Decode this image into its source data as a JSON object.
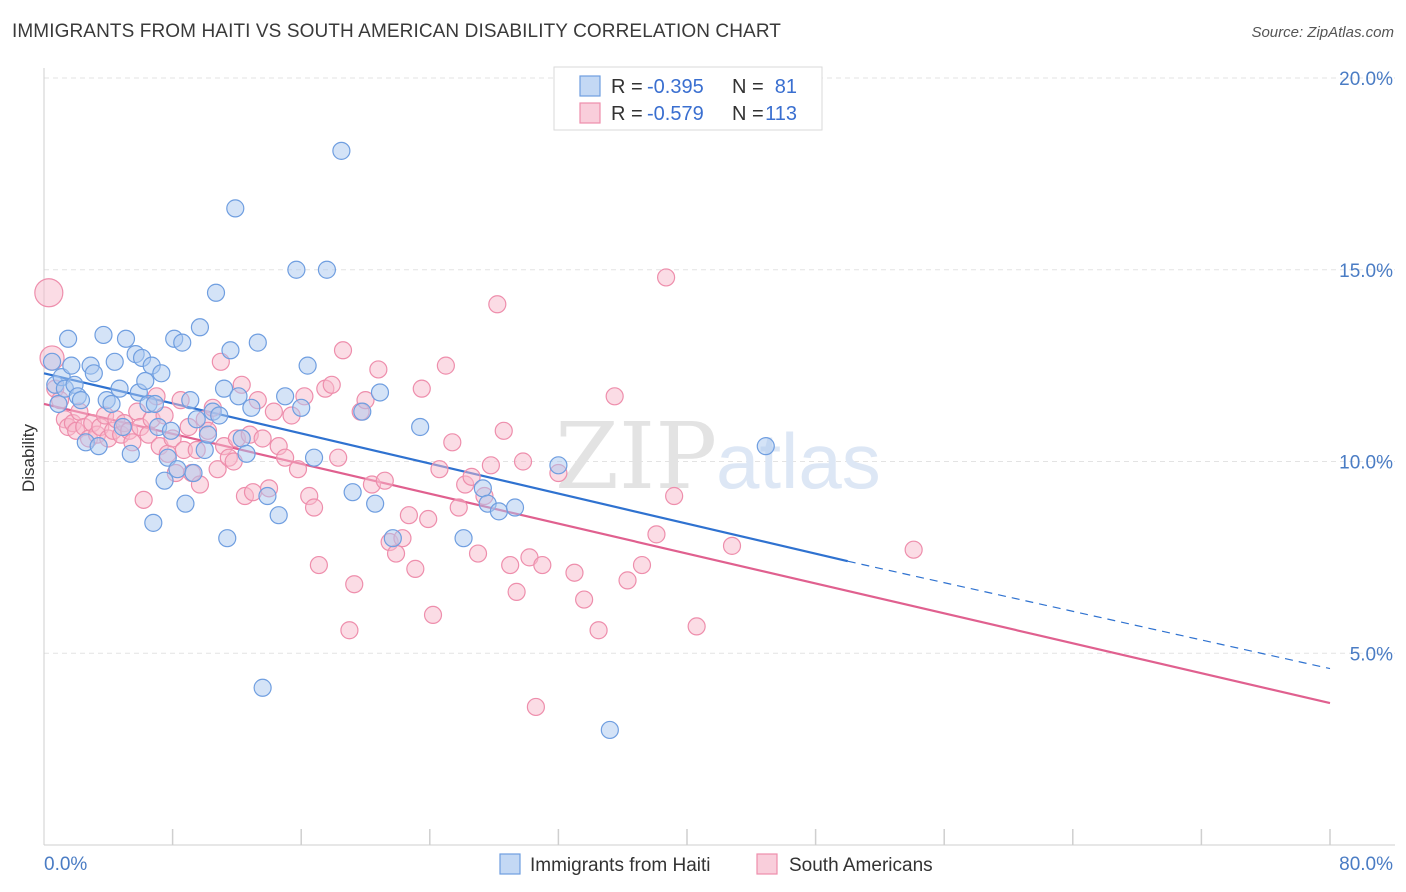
{
  "title": "IMMIGRANTS FROM HAITI VS SOUTH AMERICAN DISABILITY CORRELATION CHART",
  "source": "Source: ZipAtlas.com",
  "colors": {
    "haiti_fill": "#a9c7f0",
    "haiti_stroke": "#6f9ee0",
    "haiti_line": "#2f72d0",
    "sa_fill": "#f7b9cc",
    "sa_stroke": "#ee8eac",
    "sa_line": "#e0608f",
    "tick": "#4a7cc4",
    "grid": "#e3e3e3"
  },
  "legend": {
    "rows": [
      {
        "r_label": "R =",
        "r_value": "-0.395",
        "n_label": "N =",
        "n_value": "81"
      },
      {
        "r_label": "R =",
        "r_value": "-0.579",
        "n_label": "N =",
        "n_value": "113"
      }
    ]
  },
  "watermark": {
    "zip": "ZIP",
    "atlas": "atlas"
  },
  "chart_data": {
    "type": "scatter",
    "title": "IMMIGRANTS FROM HAITI VS SOUTH AMERICAN DISABILITY CORRELATION CHART",
    "xlabel": "",
    "ylabel": "Disability",
    "xlim": [
      0,
      80
    ],
    "ylim": [
      0,
      20
    ],
    "x_tick_labels": [
      "0.0%",
      "80.0%"
    ],
    "y_ticks": [
      5,
      10,
      15,
      20
    ],
    "y_tick_labels": [
      "5.0%",
      "10.0%",
      "15.0%",
      "20.0%"
    ],
    "grid": true,
    "legend_position": "top-center",
    "series": [
      {
        "name": "Immigrants from Haiti",
        "R": -0.395,
        "N": 81,
        "trend": {
          "x0": 0,
          "y0": 12.3,
          "x1": 50,
          "y1": 7.4,
          "dashed_to_x": 80,
          "dashed_to_y": 4.6
        },
        "points": [
          [
            0.5,
            12.6
          ],
          [
            0.7,
            12.0
          ],
          [
            0.9,
            11.5
          ],
          [
            1.1,
            12.2
          ],
          [
            1.3,
            11.9
          ],
          [
            1.5,
            13.2
          ],
          [
            1.7,
            12.5
          ],
          [
            1.9,
            12.0
          ],
          [
            2.1,
            11.7
          ],
          [
            2.3,
            11.6
          ],
          [
            2.6,
            10.5
          ],
          [
            2.9,
            12.5
          ],
          [
            3.1,
            12.3
          ],
          [
            3.4,
            10.4
          ],
          [
            3.7,
            13.3
          ],
          [
            3.9,
            11.6
          ],
          [
            4.2,
            11.5
          ],
          [
            4.4,
            12.6
          ],
          [
            4.7,
            11.9
          ],
          [
            4.9,
            10.9
          ],
          [
            5.1,
            13.2
          ],
          [
            5.4,
            10.2
          ],
          [
            5.7,
            12.8
          ],
          [
            5.9,
            11.8
          ],
          [
            6.1,
            12.7
          ],
          [
            6.3,
            12.1
          ],
          [
            6.5,
            11.5
          ],
          [
            6.7,
            12.5
          ],
          [
            6.9,
            11.5
          ],
          [
            7.1,
            10.9
          ],
          [
            6.8,
            8.4
          ],
          [
            7.3,
            12.3
          ],
          [
            7.5,
            9.5
          ],
          [
            7.7,
            10.1
          ],
          [
            7.9,
            10.8
          ],
          [
            8.1,
            13.2
          ],
          [
            8.3,
            9.8
          ],
          [
            8.6,
            13.1
          ],
          [
            8.8,
            8.9
          ],
          [
            9.1,
            11.6
          ],
          [
            9.3,
            9.7
          ],
          [
            9.5,
            11.1
          ],
          [
            9.7,
            13.5
          ],
          [
            10.0,
            10.3
          ],
          [
            10.2,
            10.7
          ],
          [
            10.5,
            11.3
          ],
          [
            10.7,
            14.4
          ],
          [
            10.9,
            11.2
          ],
          [
            11.2,
            11.9
          ],
          [
            11.4,
            8.0
          ],
          [
            11.6,
            12.9
          ],
          [
            11.9,
            16.6
          ],
          [
            12.1,
            11.7
          ],
          [
            12.3,
            10.6
          ],
          [
            12.6,
            10.2
          ],
          [
            12.9,
            11.4
          ],
          [
            13.3,
            13.1
          ],
          [
            13.6,
            4.1
          ],
          [
            13.9,
            9.1
          ],
          [
            14.6,
            8.6
          ],
          [
            15.0,
            11.7
          ],
          [
            15.7,
            15.0
          ],
          [
            16.0,
            11.4
          ],
          [
            16.4,
            12.5
          ],
          [
            16.8,
            10.1
          ],
          [
            17.6,
            15.0
          ],
          [
            18.5,
            18.1
          ],
          [
            19.2,
            9.2
          ],
          [
            19.8,
            11.3
          ],
          [
            20.6,
            8.9
          ],
          [
            20.9,
            11.8
          ],
          [
            21.7,
            8.0
          ],
          [
            23.4,
            10.9
          ],
          [
            26.1,
            8.0
          ],
          [
            27.3,
            9.3
          ],
          [
            27.6,
            8.9
          ],
          [
            28.3,
            8.7
          ],
          [
            29.3,
            8.8
          ],
          [
            32.0,
            9.9
          ],
          [
            35.2,
            3.0
          ],
          [
            44.9,
            10.4
          ]
        ]
      },
      {
        "name": "South Americans",
        "R": -0.579,
        "N": 113,
        "trend": {
          "x0": 0,
          "y0": 11.5,
          "x1": 80,
          "y1": 3.7
        },
        "points": [
          [
            0.3,
            14.4
          ],
          [
            0.5,
            12.7
          ],
          [
            0.7,
            11.9
          ],
          [
            1.0,
            11.6
          ],
          [
            1.3,
            11.1
          ],
          [
            1.5,
            10.9
          ],
          [
            1.8,
            11.0
          ],
          [
            2.0,
            10.8
          ],
          [
            2.2,
            11.3
          ],
          [
            2.5,
            10.9
          ],
          [
            2.8,
            10.6
          ],
          [
            3.0,
            11.0
          ],
          [
            3.3,
            10.7
          ],
          [
            3.5,
            10.9
          ],
          [
            3.8,
            11.2
          ],
          [
            4.0,
            10.6
          ],
          [
            4.3,
            10.8
          ],
          [
            4.5,
            11.1
          ],
          [
            4.8,
            10.7
          ],
          [
            5.0,
            11.0
          ],
          [
            5.3,
            10.8
          ],
          [
            5.5,
            10.5
          ],
          [
            5.8,
            11.3
          ],
          [
            6.0,
            10.9
          ],
          [
            6.2,
            9.0
          ],
          [
            6.5,
            10.7
          ],
          [
            6.7,
            11.1
          ],
          [
            7.0,
            11.7
          ],
          [
            7.2,
            10.4
          ],
          [
            7.5,
            11.2
          ],
          [
            7.7,
            10.2
          ],
          [
            8.0,
            10.6
          ],
          [
            8.2,
            9.7
          ],
          [
            8.5,
            11.6
          ],
          [
            8.7,
            10.3
          ],
          [
            9.0,
            10.9
          ],
          [
            9.2,
            9.7
          ],
          [
            9.5,
            10.3
          ],
          [
            9.7,
            9.4
          ],
          [
            10.0,
            11.1
          ],
          [
            10.2,
            10.8
          ],
          [
            10.5,
            11.4
          ],
          [
            10.8,
            9.8
          ],
          [
            11.0,
            12.6
          ],
          [
            11.2,
            10.4
          ],
          [
            11.5,
            10.1
          ],
          [
            11.8,
            10.0
          ],
          [
            12.0,
            10.6
          ],
          [
            12.3,
            12.0
          ],
          [
            12.5,
            9.1
          ],
          [
            12.8,
            10.7
          ],
          [
            13.0,
            9.2
          ],
          [
            13.3,
            11.6
          ],
          [
            13.6,
            10.6
          ],
          [
            14.0,
            9.3
          ],
          [
            14.3,
            11.3
          ],
          [
            14.6,
            10.4
          ],
          [
            15.0,
            10.1
          ],
          [
            15.4,
            11.2
          ],
          [
            15.8,
            9.8
          ],
          [
            16.2,
            11.7
          ],
          [
            16.5,
            9.1
          ],
          [
            16.8,
            8.8
          ],
          [
            17.1,
            7.3
          ],
          [
            17.5,
            11.9
          ],
          [
            17.9,
            12.0
          ],
          [
            18.3,
            10.1
          ],
          [
            18.6,
            12.9
          ],
          [
            19.0,
            5.6
          ],
          [
            19.3,
            6.8
          ],
          [
            19.7,
            11.3
          ],
          [
            20.0,
            11.6
          ],
          [
            20.4,
            9.4
          ],
          [
            20.8,
            12.4
          ],
          [
            21.2,
            9.5
          ],
          [
            21.5,
            7.9
          ],
          [
            21.9,
            7.6
          ],
          [
            22.3,
            8.0
          ],
          [
            22.7,
            8.6
          ],
          [
            23.1,
            7.2
          ],
          [
            23.5,
            11.9
          ],
          [
            23.9,
            8.5
          ],
          [
            24.2,
            6.0
          ],
          [
            24.6,
            9.8
          ],
          [
            25.0,
            12.5
          ],
          [
            25.4,
            10.5
          ],
          [
            25.8,
            8.8
          ],
          [
            26.2,
            9.4
          ],
          [
            26.6,
            9.6
          ],
          [
            27.0,
            7.6
          ],
          [
            27.4,
            9.1
          ],
          [
            27.8,
            9.9
          ],
          [
            28.2,
            14.1
          ],
          [
            28.6,
            10.8
          ],
          [
            29.0,
            7.3
          ],
          [
            29.4,
            6.6
          ],
          [
            29.8,
            10.0
          ],
          [
            30.2,
            7.5
          ],
          [
            30.6,
            3.6
          ],
          [
            31.0,
            7.3
          ],
          [
            32.0,
            9.7
          ],
          [
            33.0,
            7.1
          ],
          [
            33.6,
            6.4
          ],
          [
            34.5,
            5.6
          ],
          [
            35.5,
            11.7
          ],
          [
            36.3,
            6.9
          ],
          [
            37.2,
            7.3
          ],
          [
            38.1,
            8.1
          ],
          [
            38.7,
            14.8
          ],
          [
            39.2,
            9.1
          ],
          [
            40.6,
            5.7
          ],
          [
            42.8,
            7.8
          ],
          [
            54.1,
            7.7
          ]
        ]
      }
    ]
  }
}
